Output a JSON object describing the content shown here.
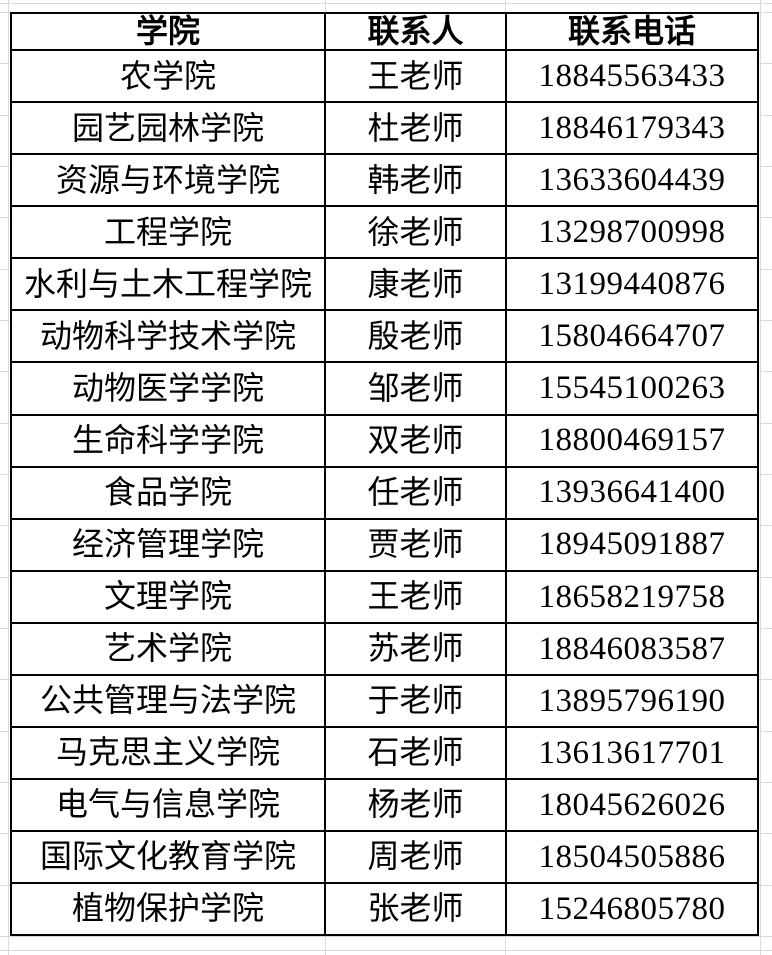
{
  "table": {
    "columns": [
      "学院",
      "联系人",
      "联系电话"
    ],
    "rows": [
      [
        "农学院",
        "王老师",
        "18845563433"
      ],
      [
        "园艺园林学院",
        "杜老师",
        "18846179343"
      ],
      [
        "资源与环境学院",
        "韩老师",
        "13633604439"
      ],
      [
        "工程学院",
        "徐老师",
        "13298700998"
      ],
      [
        "水利与土木工程学院",
        "康老师",
        "13199440876"
      ],
      [
        "动物科学技术学院",
        "殷老师",
        "15804664707"
      ],
      [
        "动物医学学院",
        "邹老师",
        "15545100263"
      ],
      [
        "生命科学学院",
        "双老师",
        "18800469157"
      ],
      [
        "食品学院",
        "任老师",
        "13936641400"
      ],
      [
        "经济管理学院",
        "贾老师",
        "18945091887"
      ],
      [
        "文理学院",
        "王老师",
        "18658219758"
      ],
      [
        "艺术学院",
        "苏老师",
        "18846083587"
      ],
      [
        "公共管理与法学院",
        "于老师",
        "13895796190"
      ],
      [
        "马克思主义学院",
        "石老师",
        "13613617701"
      ],
      [
        "电气与信息学院",
        "杨老师",
        "18045626026"
      ],
      [
        "国际文化教育学院",
        "周老师",
        "18504505886"
      ],
      [
        "植物保护学院",
        "张老师",
        "15246805780"
      ]
    ]
  },
  "colors": {
    "background": "#ffffff",
    "text": "#000000",
    "border": "#000000",
    "gridline": "#d9d9d9"
  }
}
